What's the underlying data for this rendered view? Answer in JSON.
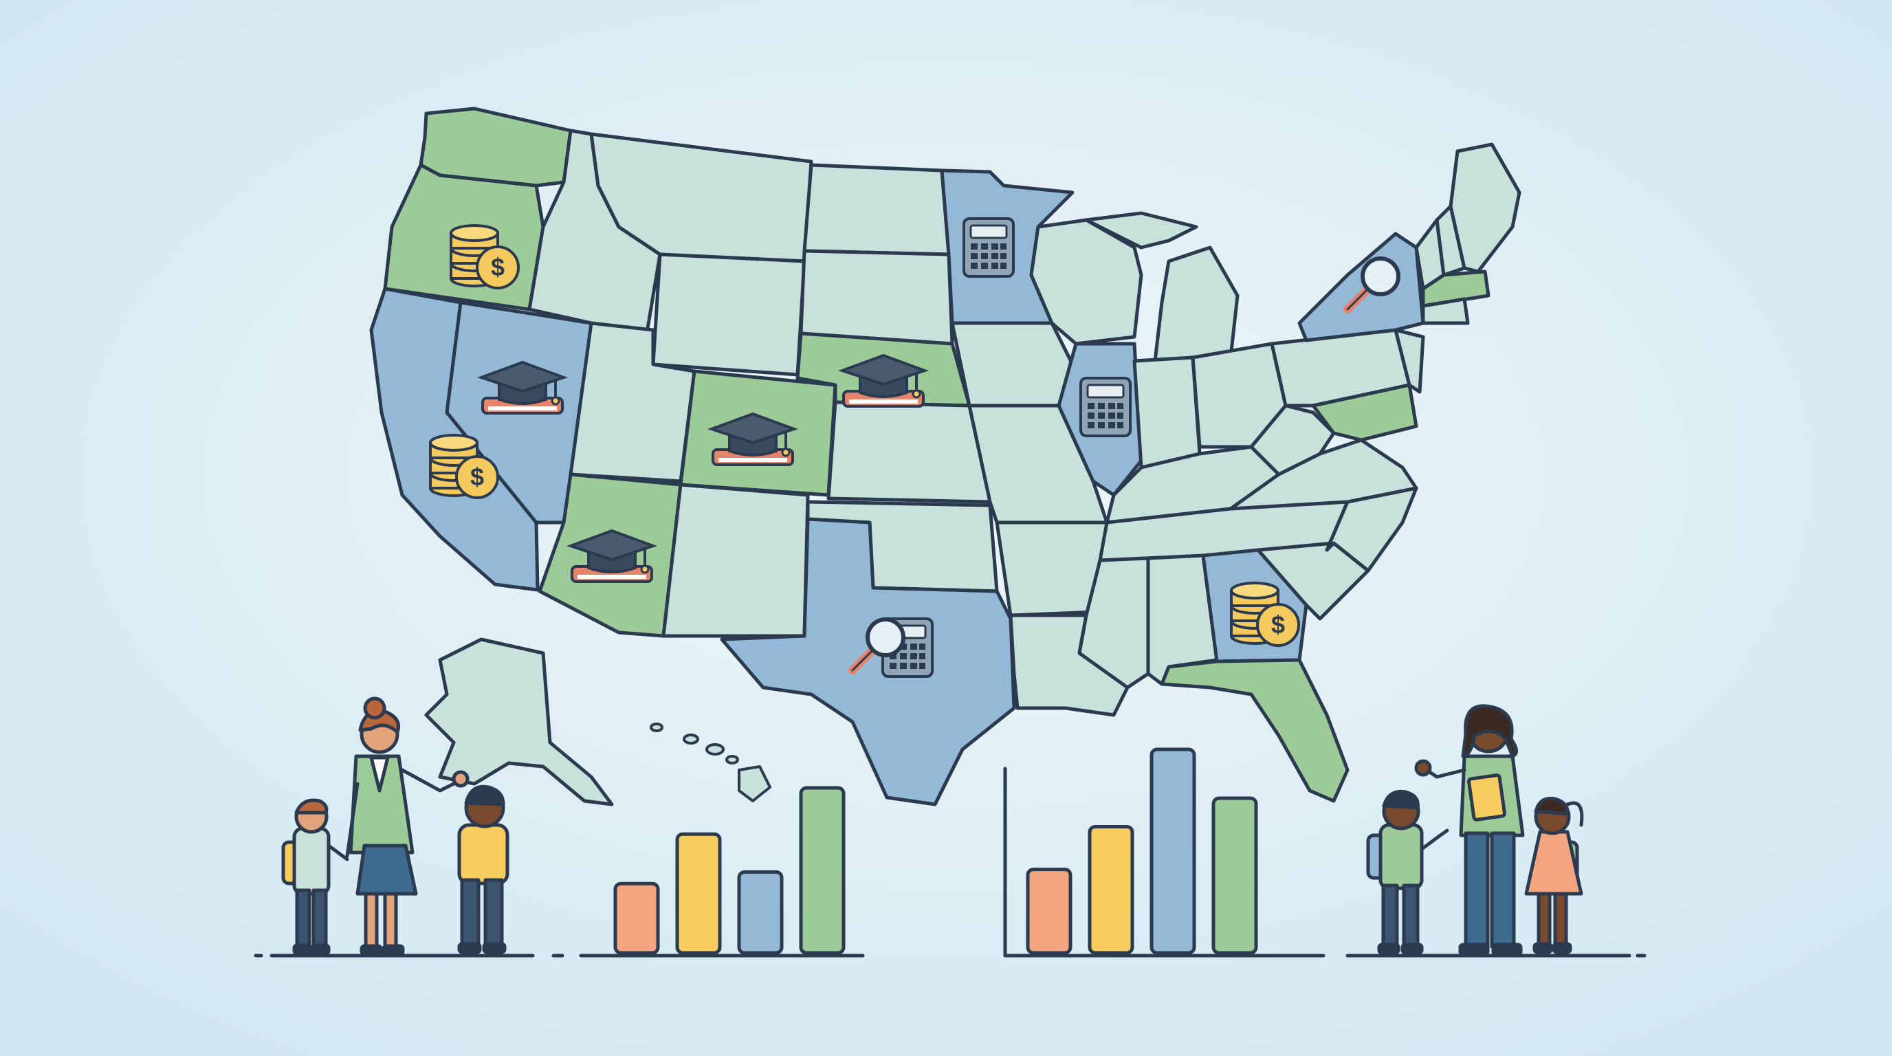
{
  "palette": {
    "background_center": "#eef7f8",
    "background_edge": "#cfe6f1",
    "outline": "#2b3a4f",
    "state_light": "#c6e2da",
    "state_green": "#9ccb99",
    "state_blue": "#93b9d7",
    "coin": "#f4c95d",
    "book": "#e8836b",
    "cap": "#3a4a5e",
    "calculator": "#8fa4b5",
    "bar_orange": "#f3a57f",
    "bar_yellow": "#f6cd5e",
    "bar_blue": "#93b9d7",
    "bar_green": "#9ccb99"
  },
  "map_icons": [
    {
      "state": "Oregon",
      "icon": "coin-stack-icon"
    },
    {
      "state": "California",
      "icon": "coin-stack-icon"
    },
    {
      "state": "Georgia",
      "icon": "coin-stack-icon"
    },
    {
      "state": "Nevada",
      "icon": "graduation-cap-book-icon"
    },
    {
      "state": "Colorado",
      "icon": "graduation-cap-book-icon"
    },
    {
      "state": "Nebraska",
      "icon": "graduation-cap-book-icon"
    },
    {
      "state": "Arizona",
      "icon": "graduation-cap-book-icon"
    },
    {
      "state": "Minnesota",
      "icon": "calculator-icon"
    },
    {
      "state": "Illinois",
      "icon": "calculator-icon"
    },
    {
      "state": "New York",
      "icon": "magnifying-glass-icon"
    },
    {
      "state": "Texas",
      "icon": "calculator-magnifier-icon"
    }
  ],
  "bar_groups": [
    {
      "name": "left-bar-chart",
      "levels": [
        0.42,
        0.72,
        0.49,
        1.0
      ],
      "colors": [
        "bar_orange",
        "bar_yellow",
        "bar_blue",
        "bar_green"
      ]
    },
    {
      "name": "right-bar-chart",
      "levels": [
        0.41,
        0.62,
        1.0,
        0.76
      ],
      "colors": [
        "bar_orange",
        "bar_yellow",
        "bar_blue",
        "bar_green"
      ]
    }
  ],
  "figures": [
    {
      "name": "teacher-left",
      "icon": "teacher-figure-icon"
    },
    {
      "name": "child-backpack-left",
      "icon": "child-figure-icon"
    },
    {
      "name": "child-yellow-shirt",
      "icon": "child-figure-icon"
    },
    {
      "name": "teacher-right",
      "icon": "teacher-figure-icon"
    },
    {
      "name": "child-backpack-right",
      "icon": "child-figure-icon"
    },
    {
      "name": "child-pink-dress",
      "icon": "child-figure-icon"
    }
  ]
}
